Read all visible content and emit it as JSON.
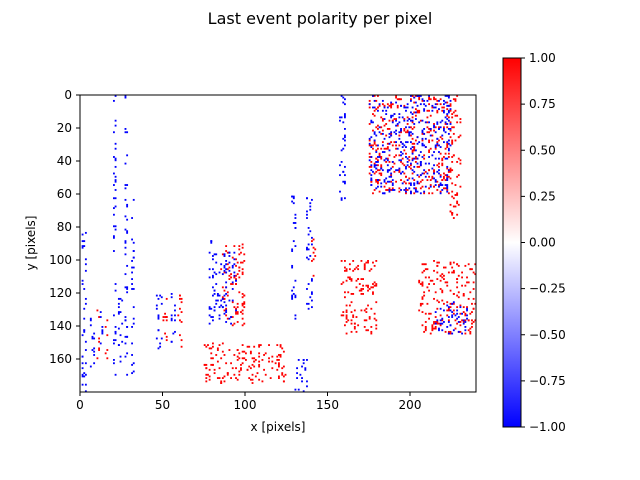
{
  "chart_data": {
    "type": "heatmap",
    "title": "Last event polarity per pixel",
    "xlabel": "x [pixels]",
    "ylabel": "y [pixels]",
    "xlim": [
      0,
      240
    ],
    "ylim": [
      180,
      0
    ],
    "x_ticks": [
      0,
      50,
      100,
      150,
      200
    ],
    "y_ticks": [
      0,
      20,
      40,
      60,
      80,
      100,
      120,
      140,
      160
    ],
    "colorbar": {
      "range": [
        -1.0,
        1.0
      ],
      "ticks": [
        "1.00",
        "0.75",
        "0.50",
        "0.25",
        "0.00",
        "−0.25",
        "−0.50",
        "−0.75",
        "−1.00"
      ],
      "tick_values": [
        1.0,
        0.75,
        0.5,
        0.25,
        0.0,
        -0.25,
        -0.5,
        -0.75,
        -1.0
      ],
      "colormap": "bwr",
      "colors": {
        "negative": "#0000ff",
        "zero": "#ffffff",
        "positive": "#ff0000"
      }
    },
    "grid": false,
    "polarity_segments": [
      {
        "polarity": -1,
        "x": [
          20,
          22
        ],
        "y": [
          0,
          170
        ]
      },
      {
        "polarity": -1,
        "x": [
          27,
          29
        ],
        "y": [
          0,
          170
        ]
      },
      {
        "polarity": -1,
        "x": [
          31,
          33
        ],
        "y": [
          60,
          170
        ]
      },
      {
        "polarity": -1,
        "x": [
          1,
          4
        ],
        "y": [
          80,
          180
        ]
      },
      {
        "polarity": -1,
        "x": [
          6,
          9
        ],
        "y": [
          130,
          165
        ]
      },
      {
        "polarity": 1,
        "x": [
          10,
          12
        ],
        "y": [
          130,
          160
        ]
      },
      {
        "polarity": -1,
        "x": [
          12,
          14
        ],
        "y": [
          130,
          160
        ]
      },
      {
        "polarity": 1,
        "x": [
          15,
          17
        ],
        "y": [
          135,
          160
        ]
      },
      {
        "polarity": -1,
        "x": [
          23,
          26
        ],
        "y": [
          120,
          165
        ]
      },
      {
        "polarity": -1,
        "x": [
          46,
          50
        ],
        "y": [
          120,
          155
        ]
      },
      {
        "polarity": 1,
        "x": [
          50,
          53
        ],
        "y": [
          120,
          150
        ]
      },
      {
        "polarity": -1,
        "x": [
          55,
          58
        ],
        "y": [
          120,
          155
        ]
      },
      {
        "polarity": 1,
        "x": [
          59,
          62
        ],
        "y": [
          120,
          155
        ]
      },
      {
        "polarity": -1,
        "x": [
          78,
          80
        ],
        "y": [
          88,
          140
        ]
      },
      {
        "polarity": 1,
        "x": [
          85,
          100
        ],
        "y": [
          90,
          140
        ]
      },
      {
        "polarity": -1,
        "x": [
          80,
          95
        ],
        "y": [
          95,
          140
        ]
      },
      {
        "polarity": 1,
        "x": [
          75,
          125
        ],
        "y": [
          150,
          175
        ]
      },
      {
        "polarity": -1,
        "x": [
          130,
          138
        ],
        "y": [
          160,
          180
        ]
      },
      {
        "polarity": -1,
        "x": [
          128,
          131
        ],
        "y": [
          60,
          140
        ]
      },
      {
        "polarity": -1,
        "x": [
          137,
          141
        ],
        "y": [
          60,
          130
        ]
      },
      {
        "polarity": 1,
        "x": [
          140,
          143
        ],
        "y": [
          85,
          110
        ]
      },
      {
        "polarity": -1,
        "x": [
          157,
          161
        ],
        "y": [
          0,
          70
        ]
      },
      {
        "polarity": 1,
        "x": [
          158,
          180
        ],
        "y": [
          100,
          145
        ]
      },
      {
        "polarity": 1,
        "x": [
          175,
          225
        ],
        "y": [
          0,
          60
        ]
      },
      {
        "polarity": -1,
        "x": [
          175,
          225
        ],
        "y": [
          0,
          60
        ]
      },
      {
        "polarity": 1,
        "x": [
          224,
          231
        ],
        "y": [
          0,
          75
        ]
      },
      {
        "polarity": 1,
        "x": [
          205,
          240
        ],
        "y": [
          100,
          145
        ]
      },
      {
        "polarity": -1,
        "x": [
          215,
          235
        ],
        "y": [
          125,
          145
        ]
      }
    ]
  }
}
